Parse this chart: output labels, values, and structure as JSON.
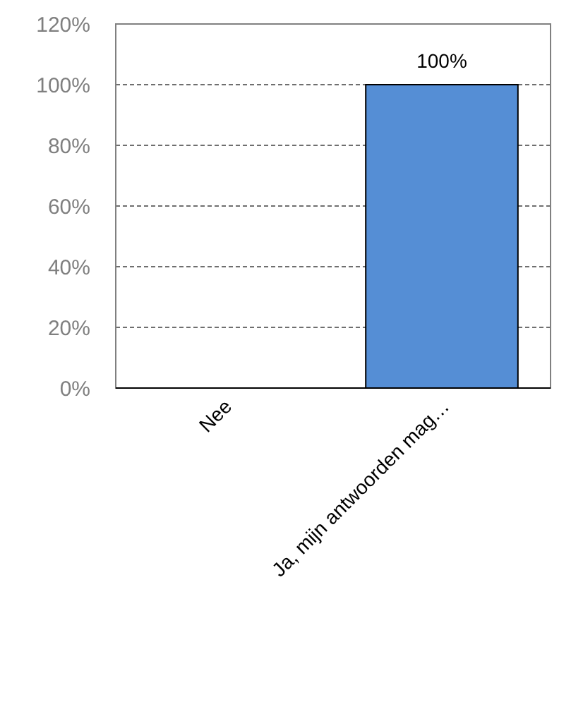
{
  "chart_data": {
    "type": "bar",
    "categories": [
      "Nee",
      "Ja, mijn antwoorden mag…"
    ],
    "values": [
      0,
      100
    ],
    "value_labels": [
      null,
      "100%"
    ],
    "color": "#558ed5",
    "ylim": [
      0,
      120
    ],
    "yticks": [
      {
        "value": 0,
        "label": "0%"
      },
      {
        "value": 20,
        "label": "20%"
      },
      {
        "value": 40,
        "label": "40%"
      },
      {
        "value": 60,
        "label": "60%"
      },
      {
        "value": 80,
        "label": "80%"
      },
      {
        "value": 100,
        "label": "100%"
      },
      {
        "value": 120,
        "label": "120%"
      }
    ],
    "grid": "y"
  }
}
